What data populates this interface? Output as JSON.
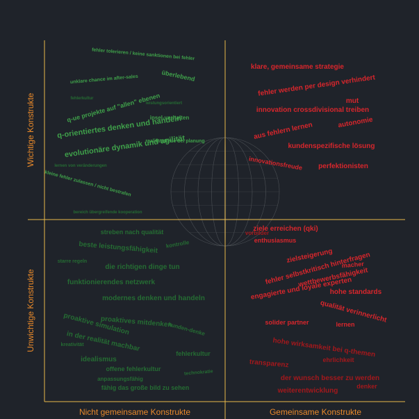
{
  "chart_data": {
    "type": "quadrant-wordcloud",
    "x_axis_labels": {
      "left": "Nicht gemeinsame Konstrukte",
      "right": "Gemeinsame Konstrukte"
    },
    "y_axis_labels": {
      "top": "Wichtige Konstrukte",
      "bottom": "Unwichtige Konstrukte"
    },
    "colors": {
      "background": "#1f232a",
      "axis": "#e8b84a",
      "axis_text": "#e8892a",
      "green": "#3fa04a",
      "dark_green": "#256c33",
      "red": "#d8262c",
      "dark_red": "#a3181c",
      "globe": "#5b5f63"
    },
    "quadrants": {
      "top_left": [
        {
          "text": "q-orientiertes denken und handeln",
          "size": 11,
          "rot": -8,
          "shade": "bright"
        },
        {
          "text": "evolutionäre dynamik und agilität",
          "size": 11,
          "rot": -8,
          "shade": "bright"
        },
        {
          "text": "q-ue projekte auf \"allen\" ebenen",
          "size": 9,
          "rot": -15,
          "shade": "bright"
        },
        {
          "text": "überlebend",
          "size": 9,
          "rot": 12,
          "shade": "bright"
        },
        {
          "text": "fehler tolerieren / keine sanktionen bei fehler",
          "size": 7,
          "rot": 5,
          "shade": "bright"
        },
        {
          "text": "insel-verhalten",
          "size": 8,
          "rot": 0,
          "shade": "bright"
        },
        {
          "text": "kleine fehler zulassen / nicht bestrafen",
          "size": 7,
          "rot": 15,
          "shade": "bright"
        },
        {
          "text": "bereich übergreifende kooperation",
          "size": 6,
          "rot": 0,
          "shade": "dim"
        },
        {
          "text": "realitätstreue bei planung",
          "size": 7,
          "rot": 0,
          "shade": "bright"
        },
        {
          "text": "unklare chance im after-sales",
          "size": 7,
          "rot": -5,
          "shade": "bright"
        },
        {
          "text": "lernen von veränderungen",
          "size": 6,
          "rot": 0,
          "shade": "dim"
        },
        {
          "text": "fehlerkultur",
          "size": 6,
          "rot": 0,
          "shade": "dim"
        },
        {
          "text": "leistungsorientiert",
          "size": 6,
          "rot": 0,
          "shade": "dim"
        }
      ],
      "top_right": [
        {
          "text": "klare, gemeinsame strategie",
          "size": 10,
          "rot": 0
        },
        {
          "text": "fehler werden per design verhindert",
          "size": 10,
          "rot": -8
        },
        {
          "text": "mut",
          "size": 10,
          "rot": 0
        },
        {
          "text": "innovation crossdivisional treiben",
          "size": 10,
          "rot": 0
        },
        {
          "text": "autonomie",
          "size": 10,
          "rot": -10
        },
        {
          "text": "aus fehlern lernen",
          "size": 10,
          "rot": -12
        },
        {
          "text": "kundenspezifische lösung",
          "size": 10,
          "rot": 0
        },
        {
          "text": "perfektionisten",
          "size": 10,
          "rot": 0
        },
        {
          "text": "innovationsfreude",
          "size": 9,
          "rot": 10
        }
      ],
      "bottom_left": [
        {
          "text": "beste leistungsfähigkeit",
          "size": 10,
          "rot": 5
        },
        {
          "text": "streben nach qualität",
          "size": 9,
          "rot": 0
        },
        {
          "text": "die richtigen dinge tun",
          "size": 10,
          "rot": 0
        },
        {
          "text": "funktionierendes netzwerk",
          "size": 10,
          "rot": 0
        },
        {
          "text": "modernes denken und handeln",
          "size": 10,
          "rot": 0
        },
        {
          "text": "proaktive simulation",
          "size": 10,
          "rot": 15
        },
        {
          "text": "proaktives mitdenken",
          "size": 10,
          "rot": 5
        },
        {
          "text": "in der realität machbar",
          "size": 10,
          "rot": 12
        },
        {
          "text": "idealismus",
          "size": 10,
          "rot": 0
        },
        {
          "text": "offene fehlerkultur",
          "size": 9,
          "rot": 0
        },
        {
          "text": "fähig das große bild zu sehen",
          "size": 9,
          "rot": 0
        },
        {
          "text": "fehlerkultur",
          "size": 9,
          "rot": 0
        },
        {
          "text": "kunden-denke",
          "size": 8,
          "rot": 15
        },
        {
          "text": "anpassungsfähig",
          "size": 8,
          "rot": 0
        },
        {
          "text": "kreativität",
          "size": 7,
          "rot": 0
        },
        {
          "text": "kontrolle",
          "size": 8,
          "rot": -10
        },
        {
          "text": "technokratie",
          "size": 7,
          "rot": -5
        },
        {
          "text": "starre regeln",
          "size": 7,
          "rot": 0
        }
      ],
      "bottom_right": [
        {
          "text": "ziele erreichen (qki)",
          "size": 10,
          "rot": 0,
          "shade": "bright"
        },
        {
          "text": "enthusiasmus",
          "size": 9,
          "rot": 0,
          "shade": "bright"
        },
        {
          "text": "zielsteigerung",
          "size": 10,
          "rot": -12,
          "shade": "bright"
        },
        {
          "text": "fehler selbstkritisch hinterfragen",
          "size": 10,
          "rot": -15,
          "shade": "bright"
        },
        {
          "text": "wettbewerbsfähigkeit",
          "size": 10,
          "rot": -12,
          "shade": "bright"
        },
        {
          "text": "engagierte und loyale experten",
          "size": 10,
          "rot": -10,
          "shade": "bright"
        },
        {
          "text": "hohe standards",
          "size": 10,
          "rot": 0,
          "shade": "bright"
        },
        {
          "text": "qualität verinnerlicht",
          "size": 10,
          "rot": 15,
          "shade": "bright"
        },
        {
          "text": "solider partner",
          "size": 9,
          "rot": 0,
          "shade": "bright"
        },
        {
          "text": "lernen",
          "size": 9,
          "rot": 0,
          "shade": "bright"
        },
        {
          "text": "hohe wirksamkeit bei q-themen",
          "size": 10,
          "rot": 8,
          "shade": "dark"
        },
        {
          "text": "ehrlichkeit",
          "size": 9,
          "rot": 0,
          "shade": "dark"
        },
        {
          "text": "transparenz",
          "size": 10,
          "rot": 5,
          "shade": "dark"
        },
        {
          "text": "der wunsch besser zu werden",
          "size": 10,
          "rot": 0,
          "shade": "dark"
        },
        {
          "text": "weiterentwicklung",
          "size": 10,
          "rot": 0,
          "shade": "dark"
        },
        {
          "text": "denker",
          "size": 9,
          "rot": 0,
          "shade": "dark"
        },
        {
          "text": "macher",
          "size": 9,
          "rot": -5,
          "shade": "bright"
        },
        {
          "text": "vorbilder",
          "size": 8,
          "rot": 0,
          "shade": "dark"
        }
      ]
    }
  }
}
